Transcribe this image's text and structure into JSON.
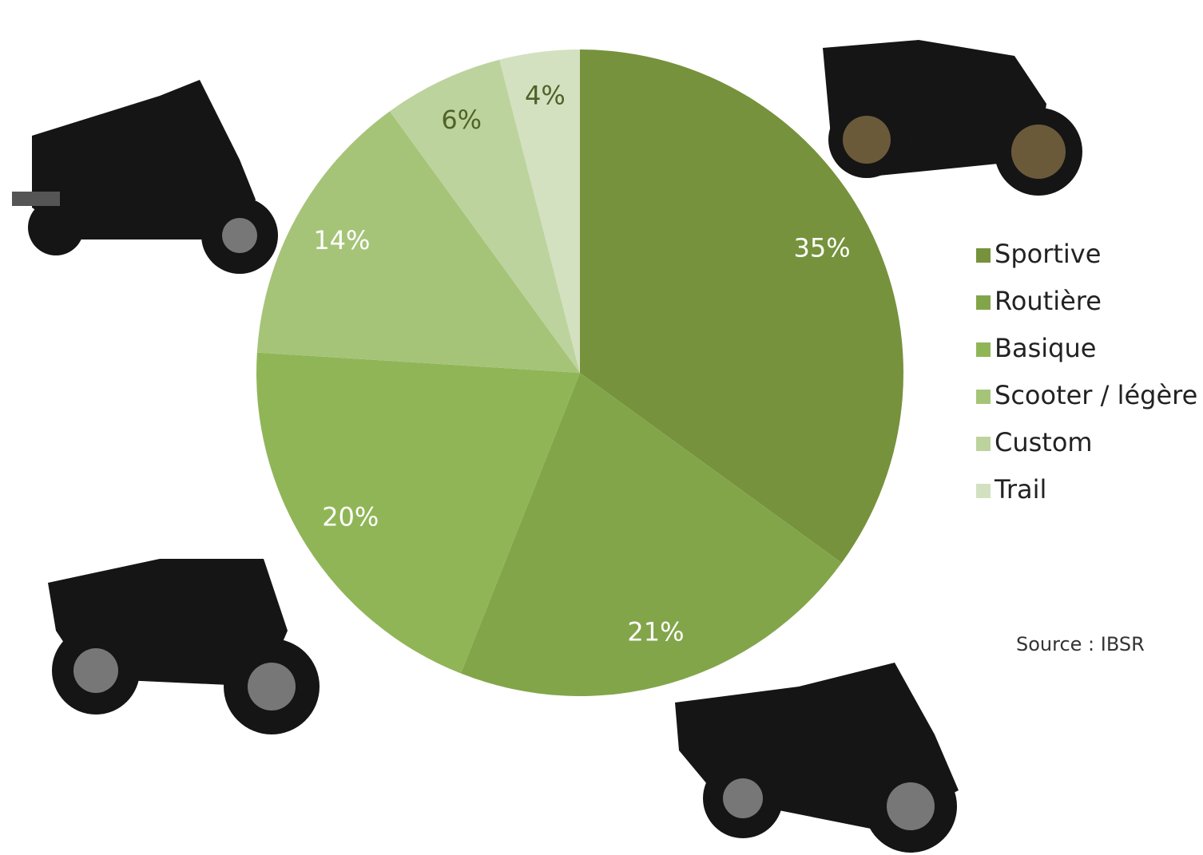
{
  "chart_data": {
    "type": "pie",
    "categories": [
      "Sportive",
      "Routière",
      "Basique",
      "Scooter / légère",
      "Custom",
      "Trail"
    ],
    "values": [
      35,
      21,
      20,
      14,
      6,
      4
    ],
    "value_labels": [
      "35%",
      "21%",
      "20%",
      "14%",
      "6%",
      "4%"
    ],
    "colors": [
      "#76923c",
      "#83a54a",
      "#90b557",
      "#a5c478",
      "#bdd39e",
      "#d3e1c0"
    ],
    "legend": "right",
    "annotation": "Source : IBSR"
  }
}
